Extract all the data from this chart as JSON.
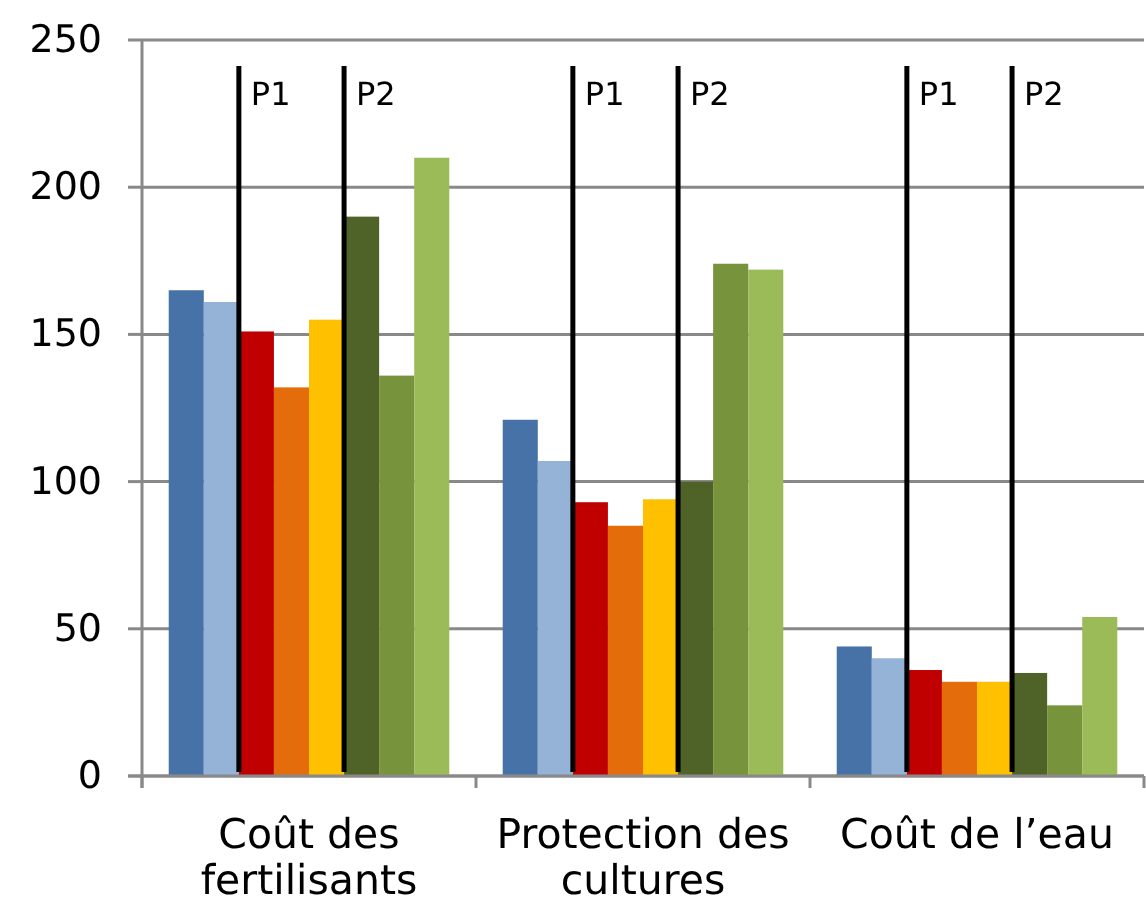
{
  "chart_data": {
    "type": "bar",
    "categories": [
      "Coût des fertilisants",
      "Protection des cultures",
      "Coût de l’eau"
    ],
    "series": [
      {
        "color": "#4672a8",
        "values": [
          165,
          121,
          44
        ]
      },
      {
        "color": "#95b3d7",
        "values": [
          161,
          107,
          40
        ]
      },
      {
        "color": "#c00000",
        "values": [
          151,
          93,
          36
        ]
      },
      {
        "color": "#e46c0a",
        "values": [
          132,
          85,
          32
        ]
      },
      {
        "color": "#ffc000",
        "values": [
          155,
          94,
          32
        ]
      },
      {
        "color": "#4f6228",
        "values": [
          190,
          100,
          35
        ]
      },
      {
        "color": "#77933c",
        "values": [
          136,
          174,
          24
        ]
      },
      {
        "color": "#9bbb59",
        "values": [
          210,
          172,
          54
        ]
      }
    ],
    "ylim": [
      0,
      250
    ],
    "yticks": [
      0,
      50,
      100,
      150,
      200,
      250
    ],
    "grid": "y",
    "annotations": [
      "P1",
      "P2",
      "P1",
      "P2",
      "P1",
      "P2"
    ]
  }
}
